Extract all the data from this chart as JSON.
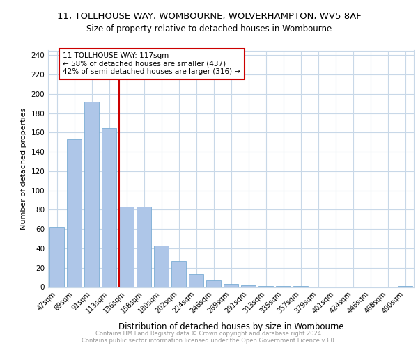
{
  "title_line1": "11, TOLLHOUSE WAY, WOMBOURNE, WOLVERHAMPTON, WV5 8AF",
  "title_line2": "Size of property relative to detached houses in Wombourne",
  "xlabel": "Distribution of detached houses by size in Wombourne",
  "ylabel": "Number of detached properties",
  "bar_labels": [
    "47sqm",
    "69sqm",
    "91sqm",
    "113sqm",
    "136sqm",
    "158sqm",
    "180sqm",
    "202sqm",
    "224sqm",
    "246sqm",
    "269sqm",
    "291sqm",
    "313sqm",
    "335sqm",
    "357sqm",
    "379sqm",
    "401sqm",
    "424sqm",
    "446sqm",
    "468sqm",
    "490sqm"
  ],
  "bar_values": [
    62,
    153,
    192,
    165,
    83,
    83,
    43,
    27,
    13,
    7,
    3,
    2,
    1,
    1,
    1,
    0,
    0,
    0,
    0,
    0,
    1
  ],
  "bar_color": "#aec6e8",
  "bar_edgecolor": "#7aadd4",
  "vline_color": "#cc0000",
  "vline_x": 3.58,
  "annotation_box_edgecolor": "#cc0000",
  "annotation_title": "11 TOLLHOUSE WAY: 117sqm",
  "annotation_line1": "← 58% of detached houses are smaller (437)",
  "annotation_line2": "42% of semi-detached houses are larger (316) →",
  "grid_color": "#c8d8e8",
  "footer_line1": "Contains HM Land Registry data © Crown copyright and database right 2024.",
  "footer_line2": "Contains public sector information licensed under the Open Government Licence v3.0.",
  "ylim": [
    0,
    245
  ],
  "yticks": [
    0,
    20,
    40,
    60,
    80,
    100,
    120,
    140,
    160,
    180,
    200,
    220,
    240
  ]
}
